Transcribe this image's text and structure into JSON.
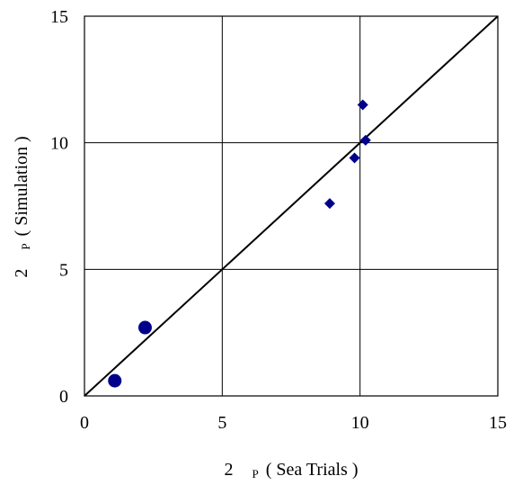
{
  "chart_data": {
    "type": "scatter",
    "title": "",
    "xlabel": {
      "prefix": "2",
      "sub": "P",
      "text": "( Sea Trials )"
    },
    "ylabel": {
      "prefix": "2",
      "sub": "P",
      "text": "( Simulation )"
    },
    "xlim": [
      0,
      15
    ],
    "ylim": [
      0,
      15
    ],
    "xticks": [
      0,
      5,
      10,
      15
    ],
    "yticks": [
      0,
      5,
      10,
      15
    ],
    "x_tick_labels": [
      "0",
      "5",
      "10",
      "15"
    ],
    "y_tick_labels": [
      "0",
      "5",
      "10",
      "15"
    ],
    "grid": true,
    "legend": "none",
    "series": [
      {
        "marker": "diamond",
        "color": "#00008B",
        "points": [
          {
            "x": 8.9,
            "y": 7.6
          },
          {
            "x": 9.8,
            "y": 9.4
          },
          {
            "x": 10.1,
            "y": 11.5
          },
          {
            "x": 10.2,
            "y": 10.1
          }
        ]
      },
      {
        "marker": "circle",
        "color": "#00008B",
        "points": [
          {
            "x": 1.1,
            "y": 0.6
          },
          {
            "x": 2.2,
            "y": 2.7
          }
        ]
      }
    ],
    "reference_line": {
      "from": [
        0,
        0
      ],
      "to": [
        15,
        15
      ],
      "color": "#000000"
    }
  }
}
